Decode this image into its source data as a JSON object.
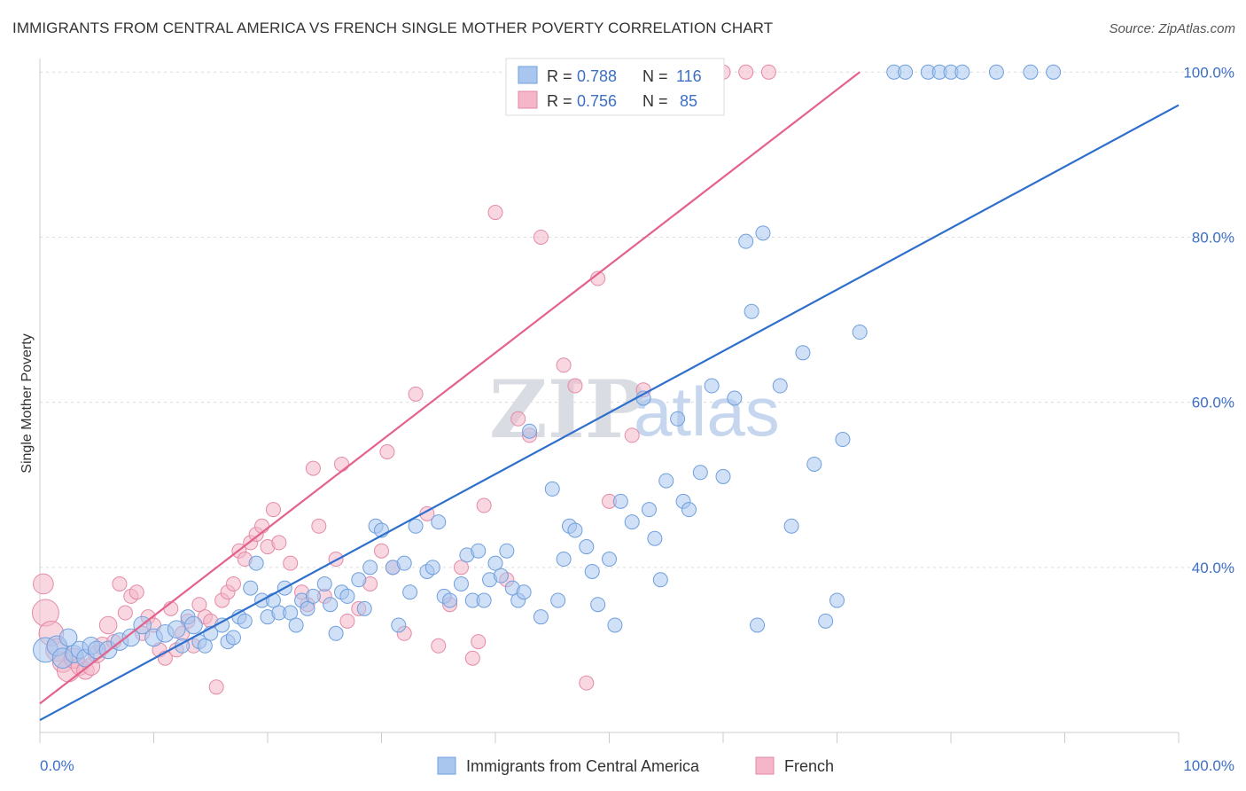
{
  "header": {
    "title": "IMMIGRANTS FROM CENTRAL AMERICA VS FRENCH SINGLE MOTHER POVERTY CORRELATION CHART",
    "source": "Source: ZipAtlas.com"
  },
  "watermark": {
    "zip": "ZIP",
    "atlas": "atlas"
  },
  "stats_legend": [
    {
      "r_label": "R =",
      "r_value": "0.788",
      "n_label": "N =",
      "n_value": "116",
      "color": "#a9c6ef"
    },
    {
      "r_label": "R =",
      "r_value": "0.756",
      "n_label": "N =",
      "n_value": "85",
      "color": "#f4b6c8"
    }
  ],
  "chart_data": {
    "type": "scatter",
    "title": "IMMIGRANTS FROM CENTRAL AMERICA VS FRENCH SINGLE MOTHER POVERTY CORRELATION CHART",
    "xlabel": "",
    "ylabel": "Single Mother Poverty",
    "xlim": [
      0,
      100
    ],
    "ylim": [
      20,
      101
    ],
    "x_tick_labels": [
      "0.0%",
      "100.0%"
    ],
    "y_ticks": [
      {
        "value": 40,
        "label": "40.0%"
      },
      {
        "value": 60,
        "label": "60.0%"
      },
      {
        "value": 80,
        "label": "80.0%"
      },
      {
        "value": 100,
        "label": "100.0%"
      }
    ],
    "grid": true,
    "legend_position": "bottom-center",
    "series": [
      {
        "name": "Immigrants from Central America",
        "color": "#a9c6ef",
        "stroke": "#6f9fdc",
        "line_color": "#2e6fcd",
        "trend": [
          [
            0,
            21.5
          ],
          [
            100,
            96.0
          ]
        ],
        "points": [
          [
            0.5,
            30,
            3
          ],
          [
            1.5,
            30.5,
            2
          ],
          [
            2,
            29,
            2
          ],
          [
            2.5,
            31.5,
            1.5
          ],
          [
            3,
            29.5,
            1.5
          ],
          [
            3.5,
            30,
            1.5
          ],
          [
            4,
            29,
            1.5
          ],
          [
            4.5,
            30.5,
            1.5
          ],
          [
            5,
            30,
            1.5
          ],
          [
            6,
            30,
            1.5
          ],
          [
            7,
            31,
            1.5
          ],
          [
            8,
            31.5,
            1.5
          ],
          [
            9,
            33,
            1.5
          ],
          [
            10,
            31.5,
            1.5
          ],
          [
            11,
            32,
            1.5
          ],
          [
            12,
            32.5,
            1.5
          ],
          [
            12.5,
            30.5,
            1
          ],
          [
            13,
            34,
            1
          ],
          [
            13.5,
            33,
            1.5
          ],
          [
            14,
            31,
            1
          ],
          [
            14.5,
            30.5,
            1
          ],
          [
            15,
            32,
            1
          ],
          [
            16,
            33,
            1
          ],
          [
            16.5,
            31,
            1
          ],
          [
            17,
            31.5,
            1
          ],
          [
            17.5,
            34,
            1
          ],
          [
            18,
            33.5,
            1
          ],
          [
            18.5,
            37.5,
            1
          ],
          [
            19,
            40.5,
            1
          ],
          [
            19.5,
            36,
            1
          ],
          [
            20,
            34,
            1
          ],
          [
            20.5,
            36,
            1
          ],
          [
            21,
            34.5,
            1
          ],
          [
            21.5,
            37.5,
            1
          ],
          [
            22,
            34.5,
            1
          ],
          [
            22.5,
            33,
            1
          ],
          [
            23,
            36,
            1
          ],
          [
            23.5,
            35,
            1
          ],
          [
            24,
            36.5,
            1
          ],
          [
            25,
            38,
            1
          ],
          [
            25.5,
            35.5,
            1
          ],
          [
            26,
            32,
            1
          ],
          [
            26.5,
            37,
            1
          ],
          [
            27,
            36.5,
            1
          ],
          [
            28,
            38.5,
            1
          ],
          [
            28.5,
            35,
            1
          ],
          [
            29,
            40,
            1
          ],
          [
            29.5,
            45,
            1
          ],
          [
            30,
            44.5,
            1
          ],
          [
            31,
            40,
            1
          ],
          [
            31.5,
            33,
            1
          ],
          [
            32,
            40.5,
            1
          ],
          [
            32.5,
            37,
            1
          ],
          [
            33,
            45,
            1
          ],
          [
            34,
            39.5,
            1
          ],
          [
            34.5,
            40,
            1
          ],
          [
            35,
            45.5,
            1
          ],
          [
            35.5,
            36.5,
            1
          ],
          [
            36,
            36,
            1
          ],
          [
            37,
            38,
            1
          ],
          [
            37.5,
            41.5,
            1
          ],
          [
            38,
            36,
            1
          ],
          [
            38.5,
            42,
            1
          ],
          [
            39,
            36,
            1
          ],
          [
            39.5,
            38.5,
            1
          ],
          [
            40,
            40.5,
            1
          ],
          [
            40.5,
            39,
            1
          ],
          [
            41,
            42,
            1
          ],
          [
            41.5,
            37.5,
            1
          ],
          [
            42,
            36,
            1
          ],
          [
            42.5,
            37,
            1
          ],
          [
            43,
            56.5,
            1
          ],
          [
            44,
            34,
            1
          ],
          [
            45,
            49.5,
            1
          ],
          [
            45.5,
            36,
            1
          ],
          [
            46,
            41,
            1
          ],
          [
            46.5,
            45,
            1
          ],
          [
            47,
            44.5,
            1
          ],
          [
            48,
            42.5,
            1
          ],
          [
            48.5,
            39.5,
            1
          ],
          [
            49,
            35.5,
            1
          ],
          [
            50,
            41,
            1
          ],
          [
            50.5,
            33,
            1
          ],
          [
            51,
            48,
            1
          ],
          [
            52,
            45.5,
            1
          ],
          [
            53,
            60.5,
            1
          ],
          [
            53.5,
            47,
            1
          ],
          [
            54,
            43.5,
            1
          ],
          [
            54.5,
            38.5,
            1
          ],
          [
            55,
            50.5,
            1
          ],
          [
            56,
            58,
            1
          ],
          [
            56.5,
            48,
            1
          ],
          [
            57,
            47,
            1
          ],
          [
            58,
            51.5,
            1
          ],
          [
            59,
            62,
            1
          ],
          [
            60,
            51,
            1
          ],
          [
            61,
            60.5,
            1
          ],
          [
            62,
            79.5,
            1
          ],
          [
            62.5,
            71,
            1
          ],
          [
            63,
            33,
            1
          ],
          [
            63.5,
            80.5,
            1
          ],
          [
            65,
            62,
            1
          ],
          [
            66,
            45,
            1
          ],
          [
            67,
            66,
            1
          ],
          [
            68,
            52.5,
            1
          ],
          [
            69,
            33.5,
            1
          ],
          [
            70,
            36,
            1
          ],
          [
            70.5,
            55.5,
            1
          ],
          [
            75,
            100,
            1
          ],
          [
            76,
            100,
            1
          ],
          [
            78,
            100,
            1
          ],
          [
            79,
            100,
            1
          ],
          [
            80,
            100,
            1
          ],
          [
            81,
            100,
            1
          ],
          [
            84,
            100,
            1
          ],
          [
            87,
            100,
            1
          ],
          [
            89,
            100,
            1
          ],
          [
            72,
            68.5,
            1
          ],
          [
            55.2,
            100,
            1
          ]
        ]
      },
      {
        "name": "French",
        "color": "#f4b6c8",
        "stroke": "#e58aa6",
        "line_color": "#e4628c",
        "trend": [
          [
            0,
            23.5
          ],
          [
            72,
            100
          ]
        ],
        "points": [
          [
            0.3,
            38,
            2
          ],
          [
            0.5,
            34.5,
            3.5
          ],
          [
            1,
            32,
            3
          ],
          [
            1.5,
            30,
            2.5
          ],
          [
            2,
            28.5,
            2
          ],
          [
            2.5,
            27.5,
            2.5
          ],
          [
            3,
            29,
            2
          ],
          [
            3.5,
            28,
            1.5
          ],
          [
            4,
            27.5,
            1.5
          ],
          [
            4.5,
            28,
            1.5
          ],
          [
            5,
            29.5,
            1.5
          ],
          [
            5.5,
            30.5,
            1.5
          ],
          [
            6,
            33,
            1.5
          ],
          [
            6.5,
            31,
            1
          ],
          [
            7,
            38,
            1
          ],
          [
            7.5,
            34.5,
            1
          ],
          [
            8,
            36.5,
            1
          ],
          [
            8.5,
            37,
            1
          ],
          [
            9,
            32,
            1
          ],
          [
            9.5,
            34,
            1
          ],
          [
            10,
            33,
            1
          ],
          [
            10.5,
            30,
            1
          ],
          [
            11,
            29,
            1
          ],
          [
            11.5,
            35,
            1
          ],
          [
            12,
            30,
            1
          ],
          [
            12.5,
            32,
            1
          ],
          [
            13,
            33.5,
            1
          ],
          [
            13.5,
            30.5,
            1
          ],
          [
            14,
            35.5,
            1
          ],
          [
            14.5,
            34,
            1
          ],
          [
            15,
            33.5,
            1
          ],
          [
            15.5,
            25.5,
            1
          ],
          [
            16,
            36,
            1
          ],
          [
            16.5,
            37,
            1
          ],
          [
            17,
            38,
            1
          ],
          [
            17.5,
            42,
            1
          ],
          [
            18,
            41,
            1
          ],
          [
            18.5,
            43,
            1
          ],
          [
            19,
            44,
            1
          ],
          [
            19.5,
            45,
            1
          ],
          [
            20,
            42.5,
            1
          ],
          [
            20.5,
            47,
            1
          ],
          [
            21,
            43,
            1
          ],
          [
            22,
            40.5,
            1
          ],
          [
            23,
            37,
            1
          ],
          [
            23.5,
            35.5,
            1
          ],
          [
            24,
            52,
            1
          ],
          [
            24.5,
            45,
            1
          ],
          [
            25,
            36.5,
            1
          ],
          [
            26,
            41,
            1
          ],
          [
            26.5,
            52.5,
            1
          ],
          [
            27,
            33.5,
            1
          ],
          [
            28,
            35,
            1
          ],
          [
            29,
            38,
            1
          ],
          [
            30,
            42,
            1
          ],
          [
            30.5,
            54,
            1
          ],
          [
            31,
            40,
            1
          ],
          [
            32,
            32,
            1
          ],
          [
            33,
            61,
            1
          ],
          [
            34,
            46.5,
            1
          ],
          [
            35,
            30.5,
            1
          ],
          [
            36,
            35.5,
            1
          ],
          [
            37,
            40,
            1
          ],
          [
            38,
            29,
            1
          ],
          [
            38.5,
            31,
            1
          ],
          [
            39,
            47.5,
            1
          ],
          [
            40,
            83,
            1
          ],
          [
            41,
            38.5,
            1
          ],
          [
            42,
            58,
            1
          ],
          [
            43,
            56,
            1
          ],
          [
            44,
            80,
            1
          ],
          [
            46,
            64.5,
            1
          ],
          [
            47,
            62,
            1
          ],
          [
            48,
            26,
            1
          ],
          [
            49,
            75,
            1
          ],
          [
            50,
            48,
            1
          ],
          [
            52,
            56,
            1
          ],
          [
            53,
            61.5,
            1
          ],
          [
            54,
            97,
            1
          ],
          [
            56,
            100,
            1
          ],
          [
            58,
            100,
            1
          ],
          [
            59,
            100,
            1
          ],
          [
            60,
            100,
            1
          ],
          [
            62,
            100,
            1
          ],
          [
            64,
            100,
            1
          ]
        ]
      }
    ]
  },
  "bottom_legend": [
    {
      "label": "Immigrants from Central America",
      "color": "#a9c6ef"
    },
    {
      "label": "French",
      "color": "#f4b6c8"
    }
  ]
}
